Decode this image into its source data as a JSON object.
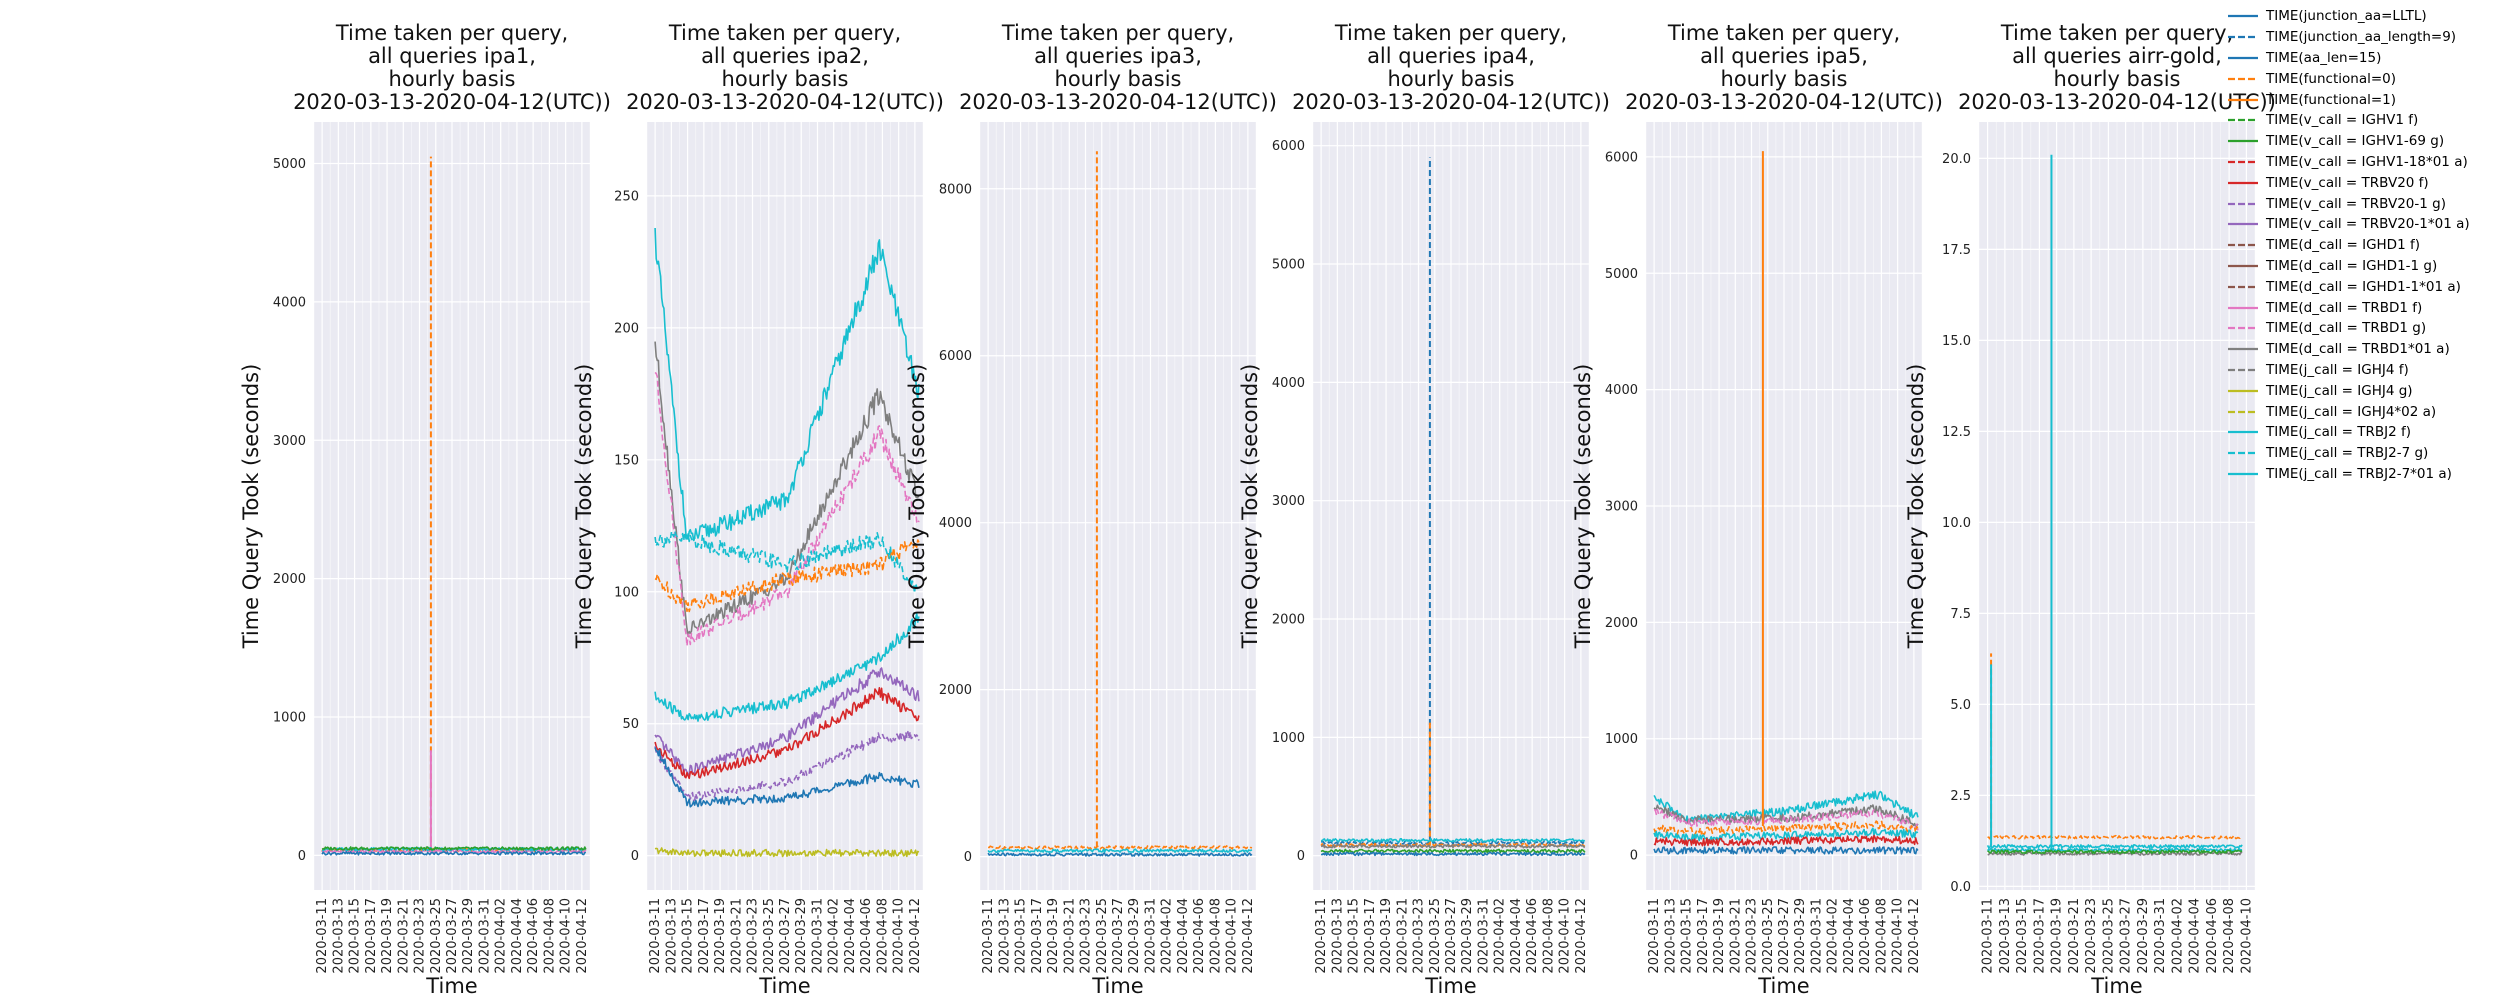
{
  "chart_data": {
    "type": "line",
    "legend_position": "right",
    "panels": [
      {
        "title": [
          "Time taken per query,",
          "all queries ipa1,",
          "hourly basis",
          "2020-03-13-2020-04-12(UTC))"
        ],
        "xlabel": "Time",
        "ylabel": "Time Query Took (seconds)",
        "xlim": [
          "2020-03-10",
          "2020-04-13"
        ],
        "ylim": [
          -250,
          5300
        ],
        "yticks": [
          0,
          1000,
          2000,
          3000,
          4000,
          5000
        ],
        "yticklabels": [
          "0",
          "1000",
          "2000",
          "3000",
          "4000",
          "5000"
        ],
        "xticks": [
          "2020-03-11",
          "2020-03-13",
          "2020-03-15",
          "2020-03-17",
          "2020-03-19",
          "2020-03-21",
          "2020-03-23",
          "2020-03-25",
          "2020-03-27",
          "2020-03-29",
          "2020-03-31",
          "2020-04-02",
          "2020-04-04",
          "2020-04-06",
          "2020-04-08",
          "2020-04-10",
          "2020-04-12"
        ],
        "series_levels": [
          {
            "series": "TIME(functional=0)",
            "level": 40,
            "spike": {
              "date": "2020-03-24",
              "value": 5050
            }
          },
          {
            "series": "TIME(d_call = TRBD1 f)",
            "level": 30,
            "spike": {
              "date": "2020-03-24",
              "value": 760
            }
          },
          {
            "series": "TIME(j_call = TRBJ2-7*01 a)",
            "level": 45
          },
          {
            "series": "TIME(v_call = IGHV1-69 g)",
            "level": 50
          },
          {
            "series": "TIME(junction_aa=LLTL)",
            "level": 15
          }
        ]
      },
      {
        "title": [
          "Time taken per query,",
          "all queries ipa2,",
          "hourly basis",
          "2020-03-13-2020-04-12(UTC))"
        ],
        "xlabel": "Time",
        "ylabel": "Time Query Took (seconds)",
        "xlim": [
          "2020-03-10",
          "2020-04-13"
        ],
        "ylim": [
          -13,
          278
        ],
        "yticks": [
          0,
          50,
          100,
          150,
          200,
          250
        ],
        "yticklabels": [
          "0",
          "50",
          "100",
          "150",
          "200",
          "250"
        ],
        "xticks": [
          "2020-03-11",
          "2020-03-13",
          "2020-03-15",
          "2020-03-17",
          "2020-03-19",
          "2020-03-21",
          "2020-03-23",
          "2020-03-25",
          "2020-03-27",
          "2020-03-29",
          "2020-03-31",
          "2020-04-02",
          "2020-04-04",
          "2020-04-06",
          "2020-04-08",
          "2020-04-10",
          "2020-04-12"
        ],
        "series_trends": [
          {
            "series": "TIME(j_call = TRBJ2-7*01 a)",
            "start": 235,
            "early": 120,
            "mid": 135,
            "late": 230,
            "end": 175
          },
          {
            "series": "TIME(d_call = TRBD1*01 a)",
            "start": 195,
            "early": 85,
            "mid": 105,
            "late": 175,
            "end": 135
          },
          {
            "series": "TIME(d_call = TRBD1 g)",
            "start": 185,
            "early": 82,
            "mid": 100,
            "late": 160,
            "end": 125
          },
          {
            "series": "TIME(functional=0)",
            "start": 105,
            "early": 95,
            "mid": 105,
            "late": 110,
            "end": 120
          },
          {
            "series": "TIME(j_call = TRBJ2-7 g)",
            "start": 120,
            "early": 120,
            "mid": 110,
            "late": 120,
            "end": 100
          },
          {
            "series": "TIME(j_call = TRBJ2 f)",
            "start": 60,
            "early": 52,
            "mid": 58,
            "late": 75,
            "end": 90
          },
          {
            "series": "TIME(v_call = TRBV20-1*01  a)",
            "start": 45,
            "early": 32,
            "mid": 45,
            "late": 70,
            "end": 60
          },
          {
            "series": "TIME(v_call = TRBV20 f)",
            "start": 42,
            "early": 30,
            "mid": 40,
            "late": 62,
            "end": 52
          },
          {
            "series": "TIME(v_call = TRBV20-1 g)",
            "start": 40,
            "early": 22,
            "mid": 28,
            "late": 45,
            "end": 45
          },
          {
            "series": "TIME(aa_len=15)",
            "start": 42,
            "early": 20,
            "mid": 22,
            "late": 30,
            "end": 27
          },
          {
            "series": "TIME(j_call = IGHJ4 g)",
            "start": 2,
            "early": 1,
            "mid": 1,
            "late": 1,
            "end": 1
          }
        ]
      },
      {
        "title": [
          "Time taken per query,",
          "all queries ipa3,",
          "hourly basis",
          "2020-03-13-2020-04-12(UTC))"
        ],
        "xlabel": "Time",
        "ylabel": "Time Query Took (seconds)",
        "xlim": [
          "2020-03-10",
          "2020-04-13"
        ],
        "ylim": [
          -400,
          8800
        ],
        "yticks": [
          0,
          2000,
          4000,
          6000,
          8000
        ],
        "yticklabels": [
          "0",
          "2000",
          "4000",
          "6000",
          "8000"
        ],
        "xticks": [
          "2020-03-11",
          "2020-03-13",
          "2020-03-15",
          "2020-03-17",
          "2020-03-19",
          "2020-03-21",
          "2020-03-23",
          "2020-03-25",
          "2020-03-27",
          "2020-03-29",
          "2020-03-31",
          "2020-04-02",
          "2020-04-04",
          "2020-04-06",
          "2020-04-08",
          "2020-04-10",
          "2020-04-12"
        ],
        "series_levels": [
          {
            "series": "TIME(functional=0)",
            "level": 110,
            "spike": {
              "date": "2020-03-24",
              "value": 8450
            }
          },
          {
            "series": "TIME(j_call = TRBJ2-7*01 a)",
            "level": 70
          },
          {
            "series": "TIME(junction_aa=LLTL)",
            "level": 25
          }
        ]
      },
      {
        "title": [
          "Time taken per query,",
          "all queries ipa4,",
          "hourly basis",
          "2020-03-13-2020-04-12(UTC))"
        ],
        "xlabel": "Time",
        "ylabel": "Time Query Took (seconds)",
        "xlim": [
          "2020-03-10",
          "2020-04-13"
        ],
        "ylim": [
          -290,
          6200
        ],
        "yticks": [
          0,
          1000,
          2000,
          3000,
          4000,
          5000,
          6000
        ],
        "yticklabels": [
          "0",
          "1000",
          "2000",
          "3000",
          "4000",
          "5000",
          "6000"
        ],
        "xticks": [
          "2020-03-11",
          "2020-03-13",
          "2020-03-15",
          "2020-03-17",
          "2020-03-19",
          "2020-03-21",
          "2020-03-23",
          "2020-03-25",
          "2020-03-27",
          "2020-03-29",
          "2020-03-31",
          "2020-04-02",
          "2020-04-04",
          "2020-04-06",
          "2020-04-08",
          "2020-04-10",
          "2020-04-12"
        ],
        "series_levels": [
          {
            "series": "TIME(junction_aa_length=9)",
            "level": 110,
            "spike": {
              "date": "2020-03-24",
              "value": 5900
            }
          },
          {
            "series": "TIME(functional=0)",
            "level": 90,
            "spike": {
              "date": "2020-03-24",
              "value": 1150
            }
          },
          {
            "series": "TIME(j_call = TRBJ2-7*01 a)",
            "level": 130
          },
          {
            "series": "TIME(d_call = TRBD1*01 a)",
            "level": 80
          },
          {
            "series": "TIME(v_call = IGHV1-69 g)",
            "level": 40
          },
          {
            "series": "TIME(junction_aa=LLTL)",
            "level": 15
          }
        ]
      },
      {
        "title": [
          "Time taken per query,",
          "all queries ipa5,",
          "hourly basis",
          "2020-03-13-2020-04-12(UTC))"
        ],
        "xlabel": "Time",
        "ylabel": "Time Query Took (seconds)",
        "xlim": [
          "2020-03-10",
          "2020-04-13"
        ],
        "ylim": [
          -300,
          6300
        ],
        "yticks": [
          0,
          1000,
          2000,
          3000,
          4000,
          5000,
          6000
        ],
        "yticklabels": [
          "0",
          "1000",
          "2000",
          "3000",
          "4000",
          "5000",
          "6000"
        ],
        "xticks": [
          "2020-03-11",
          "2020-03-13",
          "2020-03-15",
          "2020-03-17",
          "2020-03-19",
          "2020-03-21",
          "2020-03-23",
          "2020-03-25",
          "2020-03-27",
          "2020-03-29",
          "2020-03-31",
          "2020-04-02",
          "2020-04-04",
          "2020-04-06",
          "2020-04-08",
          "2020-04-10",
          "2020-04-12"
        ],
        "series_trends": [
          {
            "series": "TIME(j_call = TRBJ2-7*01 a)",
            "start": 500,
            "early": 300,
            "mid": 380,
            "late": 520,
            "end": 330
          },
          {
            "series": "TIME(d_call = TRBD1*01 a)",
            "start": 420,
            "early": 300,
            "mid": 320,
            "late": 400,
            "end": 260
          },
          {
            "series": "TIME(d_call = TRBD1 g)",
            "start": 380,
            "early": 280,
            "mid": 300,
            "late": 360,
            "end": 240
          },
          {
            "series": "TIME(functional=0)",
            "start": 230,
            "early": 200,
            "mid": 230,
            "late": 260,
            "end": 220
          },
          {
            "series": "TIME(j_call = TRBJ2 f)",
            "start": 180,
            "early": 150,
            "mid": 170,
            "late": 200,
            "end": 180
          },
          {
            "series": "TIME(v_call = TRBV20 f)",
            "start": 120,
            "early": 110,
            "mid": 120,
            "late": 140,
            "end": 120
          },
          {
            "series": "TIME(junction_aa=LLTL)",
            "start": 40,
            "early": 40,
            "mid": 40,
            "late": 40,
            "end": 40
          }
        ],
        "spikes": [
          {
            "series": "TIME(functional=0)",
            "date": "2020-03-24",
            "value": 6050
          }
        ]
      },
      {
        "title": [
          "Time taken per query,",
          "all queries airr-gold,",
          "hourly basis",
          "2020-03-13-2020-04-12(UTC))"
        ],
        "xlabel": "Time",
        "ylabel": "Time Query Took (seconds)",
        "xlim": [
          "2020-03-10",
          "2020-04-11"
        ],
        "ylim": [
          -0.1,
          21
        ],
        "yticks": [
          0,
          2.5,
          5,
          7.5,
          10,
          12.5,
          15,
          17.5,
          20
        ],
        "yticklabels": [
          "0.0",
          "2.5",
          "5.0",
          "7.5",
          "10.0",
          "12.5",
          "15.0",
          "17.5",
          "20.0"
        ],
        "xticks": [
          "2020-03-11",
          "2020-03-13",
          "2020-03-15",
          "2020-03-17",
          "2020-03-19",
          "2020-03-21",
          "2020-03-23",
          "2020-03-25",
          "2020-03-27",
          "2020-03-29",
          "2020-03-31",
          "2020-04-02",
          "2020-04-04",
          "2020-04-06",
          "2020-04-08",
          "2020-04-10"
        ],
        "series_levels": [
          {
            "series": "TIME(functional=0)",
            "level": 1.35,
            "spike": {
              "date": "2020-03-11",
              "value": 6.4
            }
          },
          {
            "series": "TIME(j_call = TRBJ2-7*01 a)",
            "level": 1.0,
            "spike": {
              "date": "2020-03-18",
              "value": 20.1
            }
          },
          {
            "series": "TIME(j_call = TRBJ2 f)",
            "level": 1.1,
            "spike": {
              "date": "2020-03-11",
              "value": 6.1
            }
          },
          {
            "series": "TIME(d_call = TRBD1*01 a)",
            "level": 0.9
          },
          {
            "series": "TIME(v_call = IGHV1-69 g)",
            "level": 0.95
          }
        ]
      }
    ],
    "legend": [
      {
        "label": "TIME(junction_aa=LLTL)",
        "color": "#1f77b4",
        "dash": "solid"
      },
      {
        "label": "TIME(junction_aa_length=9)",
        "color": "#1f77b4",
        "dash": "dashed"
      },
      {
        "label": "TIME(aa_len=15)",
        "color": "#1f77b4",
        "dash": "solid"
      },
      {
        "label": "TIME(functional=0)",
        "color": "#ff7f0e",
        "dash": "dashed"
      },
      {
        "label": "TIME(functional=1)",
        "color": "#ff7f0e",
        "dash": "solid"
      },
      {
        "label": "TIME(v_call = IGHV1 f)",
        "color": "#2ca02c",
        "dash": "dashed"
      },
      {
        "label": "TIME(v_call = IGHV1-69 g)",
        "color": "#2ca02c",
        "dash": "solid"
      },
      {
        "label": "TIME(v_call = IGHV1-18*01 a)",
        "color": "#d62728",
        "dash": "dashed"
      },
      {
        "label": "TIME(v_call = TRBV20 f)",
        "color": "#d62728",
        "dash": "solid"
      },
      {
        "label": "TIME(v_call = TRBV20-1 g)",
        "color": "#9467bd",
        "dash": "dashed"
      },
      {
        "label": "TIME(v_call = TRBV20-1*01  a)",
        "color": "#9467bd",
        "dash": "solid"
      },
      {
        "label": "TIME(d_call = IGHD1 f)",
        "color": "#8c564b",
        "dash": "dashed"
      },
      {
        "label": "TIME(d_call = IGHD1-1 g)",
        "color": "#8c564b",
        "dash": "solid"
      },
      {
        "label": "TIME(d_call = IGHD1-1*01 a)",
        "color": "#8c564b",
        "dash": "dashed"
      },
      {
        "label": "TIME(d_call = TRBD1 f)",
        "color": "#e377c2",
        "dash": "solid"
      },
      {
        "label": "TIME(d_call = TRBD1 g)",
        "color": "#e377c2",
        "dash": "dashed"
      },
      {
        "label": "TIME(d_call = TRBD1*01 a)",
        "color": "#7f7f7f",
        "dash": "solid"
      },
      {
        "label": "TIME(j_call = IGHJ4 f)",
        "color": "#7f7f7f",
        "dash": "dashed"
      },
      {
        "label": "TIME(j_call = IGHJ4 g)",
        "color": "#bcbd22",
        "dash": "solid"
      },
      {
        "label": "TIME(j_call = IGHJ4*02 a)",
        "color": "#bcbd22",
        "dash": "dashed"
      },
      {
        "label": "TIME(j_call = TRBJ2 f)",
        "color": "#17becf",
        "dash": "solid"
      },
      {
        "label": "TIME(j_call = TRBJ2-7 g)",
        "color": "#17becf",
        "dash": "dashed"
      },
      {
        "label": "TIME(j_call = TRBJ2-7*01 a)",
        "color": "#17becf",
        "dash": "solid"
      }
    ]
  }
}
